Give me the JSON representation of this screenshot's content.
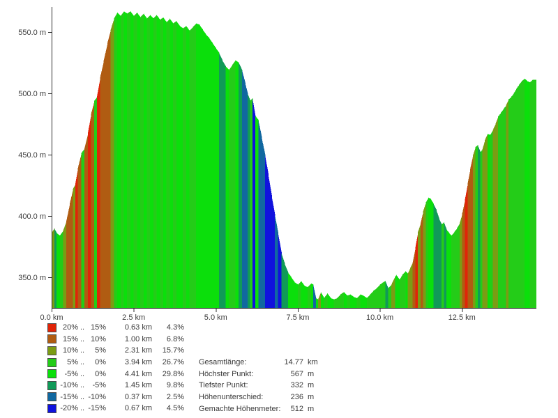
{
  "chart_data": {
    "type": "area",
    "x_unit": "km",
    "y_unit": "m",
    "x_range_km": [
      0,
      14.77
    ],
    "y_range_m": [
      324,
      570
    ],
    "grid": false,
    "legend_position": "bottom-left",
    "x_axis": {
      "tick_values_km": [
        0,
        2.5,
        5,
        7.5,
        10,
        12.5
      ],
      "tick_labels": [
        "0.0 km",
        "2.5 km",
        "5.0 km",
        "7.5 km",
        "10.0 km",
        "12.5 km"
      ]
    },
    "y_axis": {
      "tick_values_m": [
        350,
        400,
        450,
        500,
        550
      ],
      "tick_labels": [
        "350.0 m",
        "400.0 m",
        "450.0 m",
        "500.0 m",
        "550.0 m"
      ]
    },
    "slope_classes": [
      {
        "from": "20%",
        "to": "15%",
        "min": 15,
        "color": "#e02408",
        "distance": "0.63 km",
        "share": "4.3%"
      },
      {
        "from": "15%",
        "to": "10%",
        "min": 10,
        "color": "#b05c12",
        "distance": "1.00 km",
        "share": "6.8%"
      },
      {
        "from": "10%",
        "to": "5%",
        "min": 5,
        "color": "#7b9c14",
        "distance": "2.31 km",
        "share": "15.7%"
      },
      {
        "from": "5%",
        "to": "0%",
        "min": 0,
        "color": "#24cc18",
        "distance": "3.94 km",
        "share": "26.7%"
      },
      {
        "from": "-5%",
        "to": "0%",
        "min": -5,
        "color": "#0bdf0b",
        "distance": "4.41 km",
        "share": "29.8%"
      },
      {
        "from": "-10%",
        "to": "-5%",
        "min": -10,
        "color": "#109a58",
        "distance": "1.45 km",
        "share": "9.8%"
      },
      {
        "from": "-15%",
        "to": "-10%",
        "min": -15,
        "color": "#1168a0",
        "distance": "0.37 km",
        "share": "2.5%"
      },
      {
        "from": "-20%",
        "to": "-15%",
        "min": -999,
        "color": "#1012dd",
        "distance": "0.67 km",
        "share": "4.5%"
      }
    ],
    "dots_separator": "..",
    "profile": {
      "km": [
        0.0,
        0.08,
        0.15,
        0.25,
        0.35,
        0.45,
        0.55,
        0.65,
        0.72,
        0.8,
        0.9,
        1.0,
        1.1,
        1.2,
        1.3,
        1.38,
        1.48,
        1.58,
        1.7,
        1.8,
        1.9,
        2.0,
        2.1,
        2.2,
        2.3,
        2.4,
        2.5,
        2.6,
        2.7,
        2.8,
        2.9,
        3.0,
        3.1,
        3.2,
        3.3,
        3.4,
        3.5,
        3.6,
        3.7,
        3.8,
        3.9,
        4.0,
        4.1,
        4.2,
        4.3,
        4.4,
        4.5,
        4.6,
        4.7,
        4.8,
        4.9,
        5.0,
        5.1,
        5.2,
        5.3,
        5.4,
        5.5,
        5.6,
        5.7,
        5.8,
        5.9,
        5.97,
        6.05,
        6.12,
        6.2,
        6.3,
        6.4,
        6.5,
        6.6,
        6.7,
        6.8,
        6.9,
        7.0,
        7.1,
        7.2,
        7.3,
        7.4,
        7.5,
        7.6,
        7.7,
        7.8,
        7.9,
        7.97,
        8.05,
        8.12,
        8.2,
        8.3,
        8.4,
        8.5,
        8.6,
        8.7,
        8.8,
        8.9,
        9.0,
        9.1,
        9.2,
        9.3,
        9.4,
        9.5,
        9.6,
        9.7,
        9.8,
        9.9,
        10.0,
        10.1,
        10.17,
        10.25,
        10.35,
        10.45,
        10.5,
        10.6,
        10.68,
        10.78,
        10.85,
        10.93,
        11.0,
        11.08,
        11.16,
        11.24,
        11.32,
        11.4,
        11.48,
        11.55,
        11.63,
        11.72,
        11.8,
        11.88,
        11.95,
        12.03,
        12.11,
        12.18,
        12.27,
        12.35,
        12.43,
        12.51,
        12.59,
        12.67,
        12.75,
        12.83,
        12.91,
        12.98,
        13.06,
        13.12,
        13.2,
        13.28,
        13.36,
        13.44,
        13.52,
        13.6,
        13.68,
        13.76,
        13.84,
        13.92,
        14.0,
        14.08,
        14.16,
        14.24,
        14.32,
        14.41,
        14.49,
        14.57,
        14.65,
        14.77
      ],
      "elevation_m": [
        386,
        390,
        386,
        384,
        388,
        396,
        410,
        422,
        426,
        439,
        451,
        455,
        467,
        483,
        494,
        497,
        513,
        526,
        541,
        552,
        561,
        566,
        563,
        567,
        565,
        567,
        563,
        566,
        562,
        565,
        561,
        564,
        561,
        564,
        560,
        562,
        558,
        561,
        557,
        559,
        555,
        553,
        555,
        551,
        554,
        557,
        556,
        552,
        548,
        545,
        541,
        537,
        533,
        527,
        522,
        519,
        523,
        527,
        525,
        519,
        508,
        500,
        494,
        496,
        482,
        478,
        464,
        450,
        434,
        417,
        401,
        386,
        370,
        361,
        354,
        350,
        346,
        344,
        347,
        343,
        342,
        345,
        344,
        333,
        332,
        338,
        333,
        337,
        333,
        332,
        333,
        336,
        338,
        335,
        336,
        334,
        333,
        336,
        335,
        333,
        336,
        339,
        341,
        344,
        346,
        347,
        341,
        344,
        350,
        352,
        348,
        352,
        355,
        353,
        358,
        362,
        374,
        387,
        394,
        404,
        411,
        415,
        414,
        410,
        405,
        398,
        393,
        395,
        389,
        386,
        384,
        387,
        390,
        394,
        402,
        413,
        426,
        438,
        449,
        456,
        458,
        452,
        454,
        462,
        467,
        466,
        470,
        475,
        481,
        484,
        487,
        490,
        495,
        497,
        500,
        504,
        507,
        510,
        512,
        510,
        509,
        511,
        511
      ]
    }
  },
  "stats": {
    "rows": [
      {
        "label": "Gesamtlänge:",
        "value": "14.77",
        "unit": "km"
      },
      {
        "label": "Höchster Punkt:",
        "value": "567",
        "unit": "m"
      },
      {
        "label": "Tiefster Punkt:",
        "value": "332",
        "unit": "m"
      },
      {
        "label": "Höhenunterschied:",
        "value": "236",
        "unit": "m"
      },
      {
        "label": "Gemachte Höhenmeter:",
        "value": "512",
        "unit": "m"
      }
    ]
  },
  "colors": {
    "background": "#ffffff",
    "axis": "#2a2a2a",
    "text": "#3a3a3a"
  }
}
